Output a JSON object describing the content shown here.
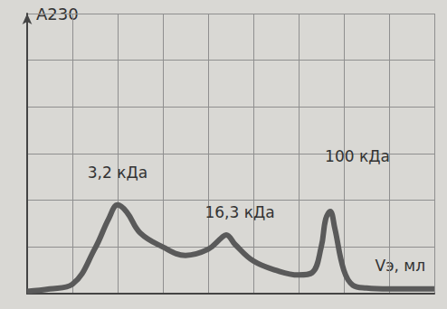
{
  "chart_data": {
    "type": "line",
    "y_label": "A230",
    "x_label": "Vэ, мл",
    "x": [
      0,
      0.5,
      1,
      1.5,
      1.8,
      2,
      2.2,
      2.5,
      3,
      3.5,
      4,
      4.3,
      4.4,
      4.6,
      5,
      5.5,
      6,
      6.3,
      6.5,
      6.6,
      6.7,
      6.8,
      7,
      7.2,
      7.5,
      8,
      8.5,
      9
    ],
    "values": [
      0.05,
      0.1,
      0.2,
      0.97,
      1.6,
      1.9,
      1.75,
      1.3,
      1.0,
      0.82,
      0.95,
      1.2,
      1.26,
      1.05,
      0.7,
      0.5,
      0.4,
      0.45,
      1.0,
      1.6,
      1.76,
      1.4,
      0.5,
      0.18,
      0.12,
      0.1,
      0.1,
      0.1
    ],
    "color": "#5a5a5a",
    "xlim": [
      0,
      9
    ],
    "xticks": [
      0,
      1,
      2,
      3,
      4,
      5,
      6,
      7,
      8,
      9
    ],
    "ylim": [
      0,
      6
    ],
    "yticks": [
      0,
      1,
      2,
      3,
      4,
      5,
      6
    ],
    "grid": true,
    "tick_labels": false,
    "annotations": [
      {
        "text": "3,2 кДа",
        "x": 2.0,
        "y": 2.6
      },
      {
        "text": "16,3 кДа",
        "x": 4.7,
        "y": 1.75
      },
      {
        "text": "100 кДа",
        "x": 7.3,
        "y": 2.95
      }
    ]
  }
}
